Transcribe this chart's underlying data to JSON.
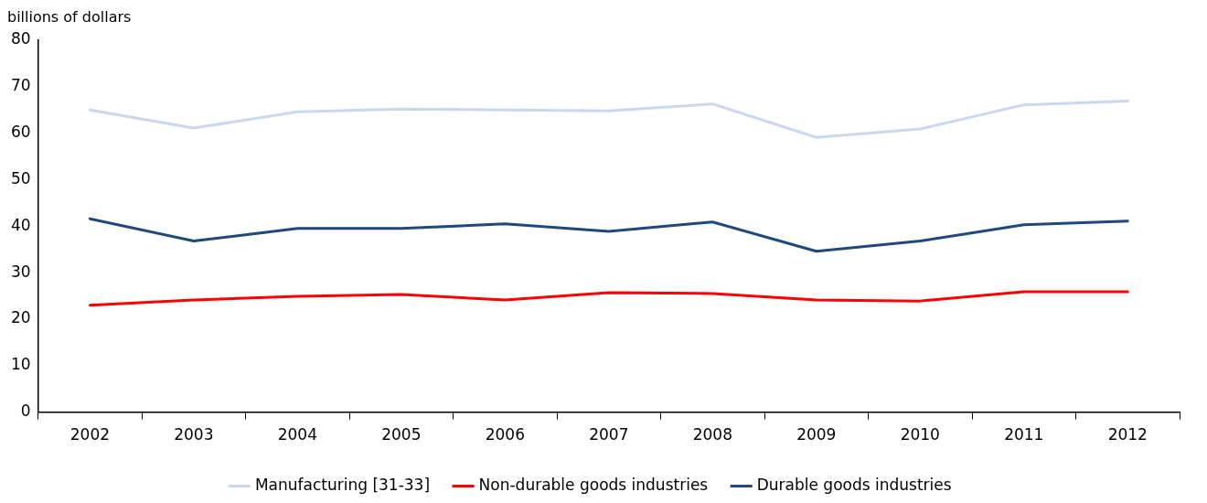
{
  "chart_data": {
    "type": "line",
    "ylabel": "billions of dollars",
    "categories": [
      "2002",
      "2003",
      "2004",
      "2005",
      "2006",
      "2007",
      "2008",
      "2009",
      "2010",
      "2011",
      "2012"
    ],
    "series": [
      {
        "name": "Manufacturing [31-33]",
        "color": "#c6d9f1",
        "values": [
          65.0,
          61.1,
          64.6,
          65.2,
          65.0,
          64.8,
          66.3,
          59.1,
          60.9,
          66.1,
          66.9
        ]
      },
      {
        "name": "Non-durable goods industries",
        "color": "#ff0000",
        "values": [
          23.0,
          24.1,
          24.9,
          25.3,
          24.1,
          25.7,
          25.5,
          24.1,
          23.9,
          25.9,
          25.9
        ]
      },
      {
        "name": "Durable goods industries",
        "color": "#1f497d",
        "values": [
          41.6,
          36.8,
          39.5,
          39.5,
          40.5,
          38.9,
          40.9,
          34.6,
          36.8,
          40.3,
          41.1
        ]
      }
    ],
    "ylim": [
      0,
      80
    ],
    "yticks": [
      0,
      10,
      20,
      30,
      40,
      50,
      60,
      70,
      80
    ],
    "grid": false,
    "legend": "bottom",
    "marker": "none",
    "line_style": "solid"
  }
}
